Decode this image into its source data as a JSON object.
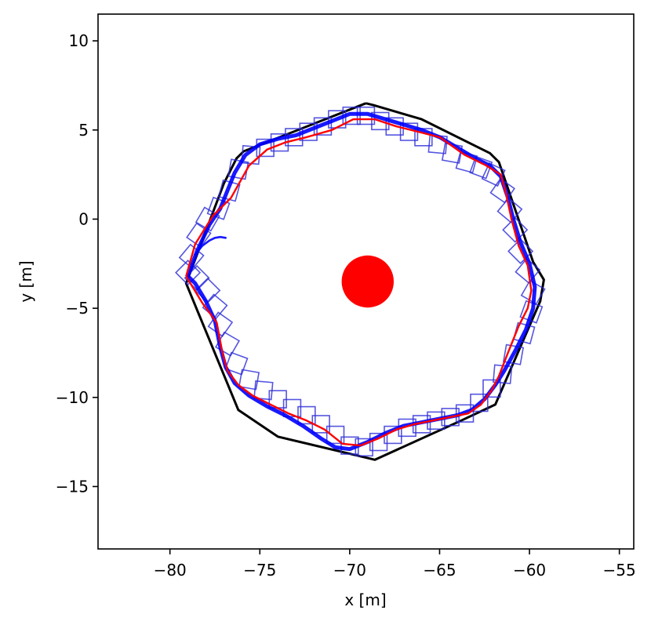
{
  "chart_data": {
    "type": "line",
    "title": "",
    "xlabel": "x [m]",
    "ylabel": "y [m]",
    "xlim": [
      -84,
      -54.2
    ],
    "ylim": [
      -18.5,
      11.5
    ],
    "xticks": [
      -80,
      -75,
      -70,
      -65,
      -60,
      -55
    ],
    "yticks": [
      10,
      5,
      0,
      -5,
      -10,
      -15
    ],
    "xtick_labels": [
      "−80",
      "−75",
      "−70",
      "−65",
      "−60",
      "−55"
    ],
    "ytick_labels": [
      "10",
      "5",
      "0",
      "−5",
      "−10",
      "−15"
    ],
    "grid": false,
    "legend": "none",
    "series": [
      {
        "color": "#000000",
        "kind": "polygon",
        "x": [
          -69.1,
          -68.7,
          -66.0,
          -62.2,
          -61.7,
          -59.8,
          -59.2,
          -59.4,
          -61.9,
          -63.8,
          -68.6,
          -69.0,
          -74.0,
          -76.2,
          -79.1,
          -77.0,
          -76.3,
          -75.9,
          -69.1
        ],
        "y": [
          6.5,
          6.4,
          5.6,
          3.7,
          3.2,
          -2.4,
          -3.4,
          -4.6,
          -10.4,
          -11.3,
          -13.5,
          -13.4,
          -12.2,
          -10.7,
          -3.6,
          2.0,
          3.4,
          3.8,
          6.5
        ]
      },
      {
        "color": "#ff0000",
        "kind": "line",
        "x": [
          -79.1,
          -78.6,
          -77.6,
          -76.6,
          -75.6,
          -74.6,
          -73.6,
          -72.4,
          -71.0,
          -69.8,
          -68.6,
          -67.4,
          -66.2,
          -65.0,
          -63.6,
          -62.4,
          -61.6,
          -61.3,
          -61.0,
          -60.6,
          -60.1,
          -59.9,
          -60.1,
          -60.6,
          -61.2,
          -61.7,
          -62.1,
          -62.7,
          -63.4,
          -64.4,
          -65.4,
          -66.4,
          -67.4,
          -68.4,
          -69.4,
          -70.4,
          -71.4,
          -72.4,
          -73.4,
          -74.4,
          -75.4,
          -76.2,
          -76.8,
          -77.1,
          -77.4,
          -78.2,
          -79.1
        ],
        "y": [
          -3.2,
          -1.4,
          0.2,
          1.2,
          3.0,
          3.9,
          4.3,
          4.6,
          5.0,
          5.6,
          5.6,
          5.2,
          4.9,
          4.6,
          3.6,
          3.0,
          2.5,
          1.4,
          0.0,
          -1.5,
          -2.6,
          -4.0,
          -5.0,
          -6.0,
          -7.5,
          -8.8,
          -9.6,
          -10.4,
          -10.9,
          -11.1,
          -11.3,
          -11.5,
          -11.8,
          -12.3,
          -12.7,
          -12.6,
          -11.8,
          -11.3,
          -10.9,
          -10.4,
          -9.9,
          -9.3,
          -8.5,
          -7.4,
          -5.8,
          -4.7,
          -3.2
        ]
      },
      {
        "color": "#0000ff",
        "kind": "line",
        "x": [
          -79.0,
          -78.5,
          -77.8,
          -77.2,
          -76.8,
          -76.4,
          -75.8,
          -75.0,
          -74.0,
          -73.0,
          -72.0,
          -71.0,
          -70.0,
          -69.0,
          -68.0,
          -67.0,
          -66.0,
          -65.0,
          -64.0,
          -63.0,
          -62.2,
          -61.6,
          -61.2,
          -60.9,
          -60.5,
          -60.0,
          -59.7,
          -59.8,
          -60.2,
          -60.8,
          -61.4,
          -61.9,
          -62.5,
          -63.2,
          -64.0,
          -65.0,
          -66.0,
          -67.0,
          -68.0,
          -69.0,
          -70.0,
          -70.8,
          -71.6,
          -72.6,
          -73.6,
          -74.6,
          -75.6,
          -76.4,
          -76.9,
          -77.2,
          -77.5,
          -78.0,
          -78.6,
          -79.0
        ],
        "y": [
          -3.2,
          -1.8,
          -0.3,
          0.6,
          1.6,
          2.6,
          3.6,
          4.2,
          4.5,
          4.7,
          5.1,
          5.5,
          5.9,
          5.9,
          5.6,
          5.3,
          5.0,
          4.6,
          4.0,
          3.4,
          3.0,
          2.4,
          1.2,
          0.0,
          -1.3,
          -2.5,
          -3.8,
          -5.0,
          -6.2,
          -7.4,
          -8.5,
          -9.3,
          -10.1,
          -10.7,
          -11.0,
          -11.2,
          -11.4,
          -11.6,
          -12.0,
          -12.5,
          -12.9,
          -12.8,
          -12.3,
          -11.6,
          -11.0,
          -10.5,
          -9.9,
          -9.2,
          -8.3,
          -7.2,
          -5.7,
          -4.6,
          -3.6,
          -3.2
        ]
      },
      {
        "color": "#0000ff",
        "kind": "line",
        "x": [
          -78.6,
          -78.2,
          -77.8,
          -77.5,
          -77.2,
          -76.9
        ],
        "y": [
          -2.0,
          -1.5,
          -1.2,
          -1.05,
          -1.0,
          -1.05
        ]
      }
    ],
    "marker_series": {
      "color": "#2a2ad8",
      "shape": "square",
      "size_m": 0.95,
      "x": [
        -79.0,
        -78.8,
        -78.4,
        -77.9,
        -77.3,
        -76.7,
        -76.2,
        -75.5,
        -74.7,
        -73.9,
        -73.1,
        -72.3,
        -71.5,
        -70.7,
        -69.9,
        -69.1,
        -68.3,
        -67.5,
        -66.7,
        -65.9,
        -65.1,
        -64.3,
        -63.5,
        -62.7,
        -62.0,
        -61.5,
        -61.1,
        -60.8,
        -60.5,
        -60.1,
        -59.8,
        -59.9,
        -60.3,
        -60.9,
        -61.5,
        -62.1,
        -62.8,
        -63.6,
        -64.4,
        -65.2,
        -66.0,
        -66.8,
        -67.6,
        -68.4,
        -69.2,
        -70.0,
        -70.8,
        -71.6,
        -72.4,
        -73.2,
        -74.0,
        -74.8,
        -75.6,
        -76.3,
        -76.8,
        -77.2,
        -77.5,
        -77.9,
        -78.5
      ],
      "y": [
        -3.0,
        -2.1,
        -0.9,
        0.0,
        0.6,
        1.6,
        2.8,
        3.6,
        4.0,
        4.3,
        4.6,
        4.9,
        5.2,
        5.6,
        5.8,
        5.8,
        5.5,
        5.2,
        4.9,
        4.6,
        4.2,
        3.7,
        3.2,
        2.9,
        2.5,
        1.6,
        0.5,
        -0.6,
        -1.8,
        -2.9,
        -4.1,
        -5.2,
        -6.4,
        -7.6,
        -8.7,
        -9.5,
        -10.3,
        -10.9,
        -11.1,
        -11.3,
        -11.5,
        -11.7,
        -12.1,
        -12.5,
        -12.8,
        -12.7,
        -12.1,
        -11.5,
        -11.0,
        -10.6,
        -10.1,
        -9.6,
        -9.0,
        -8.1,
        -7.0,
        -5.9,
        -4.9,
        -4.0,
        -3.3
      ],
      "angle_deg": [
        45,
        40,
        35,
        30,
        20,
        15,
        10,
        5,
        0,
        0,
        0,
        0,
        0,
        0,
        0,
        0,
        0,
        0,
        0,
        0,
        5,
        10,
        15,
        20,
        25,
        35,
        40,
        45,
        45,
        40,
        30,
        20,
        15,
        10,
        5,
        0,
        0,
        0,
        0,
        0,
        0,
        0,
        0,
        0,
        0,
        0,
        0,
        0,
        0,
        0,
        0,
        5,
        10,
        20,
        30,
        35,
        40,
        45,
        45
      ]
    },
    "circle_marker": {
      "color": "#ff0000",
      "x": -69.0,
      "y": -3.5,
      "radius_m": 1.45
    }
  }
}
